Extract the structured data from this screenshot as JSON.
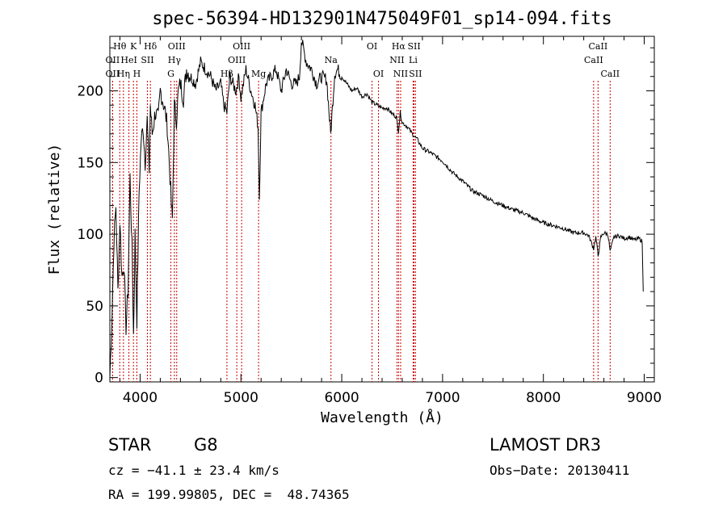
{
  "chart_data": {
    "type": "line",
    "title": "spec-56394-HD132901N475049F01_sp14-094.fits",
    "xlabel": "Wavelength (Å)",
    "ylabel": "Flux (relative)",
    "xlim": [
      3700,
      9100
    ],
    "ylim": [
      -3,
      238
    ],
    "xticks": [
      4000,
      5000,
      6000,
      7000,
      8000,
      9000
    ],
    "yticks": [
      0,
      50,
      100,
      150,
      200
    ],
    "grid": false,
    "series": [
      {
        "name": "flux",
        "x": [
          3700,
          3720,
          3740,
          3760,
          3780,
          3800,
          3820,
          3840,
          3860,
          3880,
          3900,
          3920,
          3935,
          3950,
          3968,
          3990,
          4010,
          4030,
          4050,
          4070,
          4090,
          4101,
          4120,
          4150,
          4180,
          4200,
          4220,
          4250,
          4270,
          4290,
          4310,
          4320,
          4340,
          4360,
          4380,
          4400,
          4430,
          4460,
          4500,
          4550,
          4600,
          4650,
          4700,
          4750,
          4800,
          4830,
          4861,
          4890,
          4920,
          4950,
          4980,
          5000,
          5050,
          5100,
          5140,
          5170,
          5183,
          5200,
          5250,
          5300,
          5350,
          5400,
          5450,
          5500,
          5550,
          5580,
          5600,
          5650,
          5700,
          5750,
          5800,
          5850,
          5890,
          5930,
          5960,
          6000,
          6050,
          6100,
          6150,
          6200,
          6250,
          6300,
          6350,
          6400,
          6450,
          6500,
          6540,
          6563,
          6580,
          6600,
          6650,
          6700,
          6750,
          6800,
          6900,
          7000,
          7100,
          7200,
          7300,
          7400,
          7500,
          7600,
          7700,
          7800,
          7900,
          8000,
          8100,
          8200,
          8300,
          8400,
          8450,
          8498,
          8520,
          8542,
          8570,
          8600,
          8640,
          8662,
          8700,
          8750,
          8800,
          8850,
          8900,
          8950,
          8980,
          8990
        ],
        "values": [
          0,
          40,
          95,
          120,
          60,
          110,
          70,
          80,
          35,
          60,
          140,
          90,
          30,
          100,
          40,
          130,
          165,
          175,
          150,
          180,
          145,
          190,
          170,
          185,
          180,
          200,
          195,
          185,
          175,
          150,
          120,
          110,
          190,
          180,
          200,
          205,
          195,
          215,
          210,
          205,
          220,
          215,
          210,
          200,
          205,
          190,
          185,
          210,
          205,
          200,
          210,
          195,
          215,
          200,
          190,
          175,
          125,
          185,
          205,
          210,
          215,
          200,
          215,
          205,
          205,
          210,
          235,
          220,
          215,
          205,
          210,
          208,
          170,
          212,
          215,
          210,
          205,
          200,
          202,
          196,
          198,
          192,
          190,
          188,
          188,
          184,
          182,
          172,
          185,
          178,
          175,
          170,
          166,
          160,
          156,
          151,
          143,
          137,
          130,
          127,
          123,
          120,
          117,
          115,
          111,
          108,
          106,
          104,
          101,
          101,
          99,
          90,
          98,
          85,
          98,
          101,
          100,
          88,
          98,
          99,
          97,
          98,
          96,
          97,
          95,
          60
        ]
      }
    ],
    "lines": [
      {
        "label": "Hθ",
        "x": 3798,
        "row": 1
      },
      {
        "label": "OII",
        "x": 3727,
        "row": 2
      },
      {
        "label": "OII",
        "x": 3727,
        "row": 3
      },
      {
        "label": "Hη",
        "x": 3835,
        "row": 3
      },
      {
        "label": "HeI",
        "x": 3889,
        "row": 2
      },
      {
        "label": "K",
        "x": 3934,
        "row": 1
      },
      {
        "label": "H",
        "x": 3968,
        "row": 3
      },
      {
        "label": "SII",
        "x": 4072,
        "row": 2
      },
      {
        "label": "Hδ",
        "x": 4102,
        "row": 1
      },
      {
        "label": "OIII",
        "x": 4363,
        "row": 1
      },
      {
        "label": "Hγ",
        "x": 4340,
        "row": 2
      },
      {
        "label": "G",
        "x": 4305,
        "row": 3
      },
      {
        "label": "Hβ",
        "x": 4861,
        "row": 3
      },
      {
        "label": "OIII",
        "x": 4959,
        "row": 2
      },
      {
        "label": "OIII",
        "x": 5007,
        "row": 1
      },
      {
        "label": "Mg",
        "x": 5175,
        "row": 3
      },
      {
        "label": "Na",
        "x": 5893,
        "row": 2
      },
      {
        "label": "OI",
        "x": 6300,
        "row": 1
      },
      {
        "label": "OI",
        "x": 6364,
        "row": 3
      },
      {
        "label": "NII",
        "x": 6548,
        "row": 2
      },
      {
        "label": "NII",
        "x": 6584,
        "row": 3
      },
      {
        "label": "Hα",
        "x": 6563,
        "row": 1
      },
      {
        "label": "SII",
        "x": 6717,
        "row": 1
      },
      {
        "label": "Li",
        "x": 6708,
        "row": 2
      },
      {
        "label": "SII",
        "x": 6731,
        "row": 3
      },
      {
        "label": "CaII",
        "x": 8498,
        "row": 2
      },
      {
        "label": "CaII",
        "x": 8542,
        "row": 1
      },
      {
        "label": "CaII",
        "x": 8662,
        "row": 3
      }
    ],
    "line_color": "#cc0000"
  },
  "info": {
    "class": "STAR",
    "subclass": "G8",
    "survey": "LAMOST DR3",
    "cz": "cz = −41.1 ± 23.4 km/s",
    "obs_date": "Obs−Date: 20130411",
    "coords": "RA = 199.99805, DEC =  48.74365"
  }
}
